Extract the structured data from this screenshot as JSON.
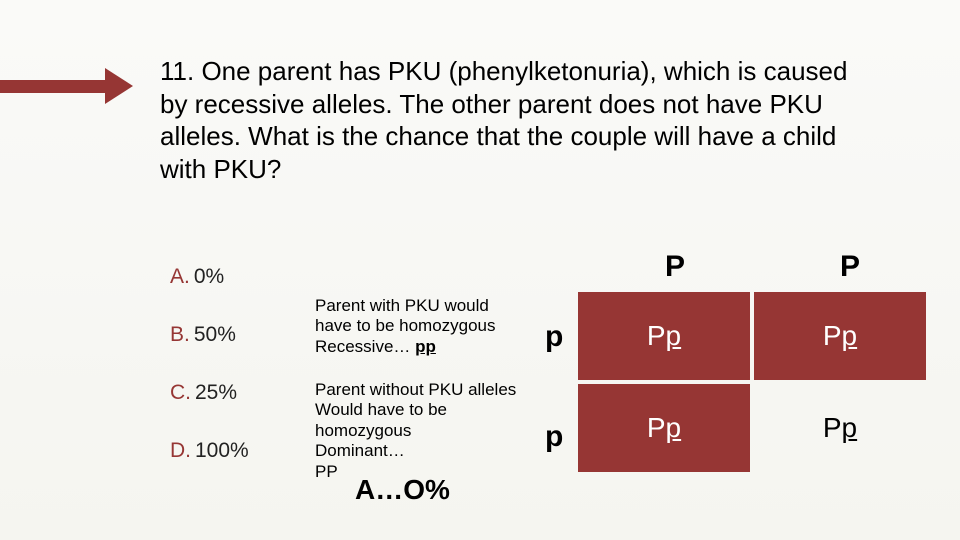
{
  "question": "11. One parent has PKU (phenylketonuria), which is caused by recessive alleles. The other parent does not have PKU alleles. What is the chance that the couple will have a child with PKU?",
  "options": {
    "A": {
      "letter": "A.",
      "text": "0%"
    },
    "B": {
      "letter": "B.",
      "text": "50%"
    },
    "C": {
      "letter": "C.",
      "text": "25%"
    },
    "D": {
      "letter": "D.",
      "text": "100%"
    }
  },
  "explain1": {
    "line1": "Parent with PKU would",
    "line2": "have to be homozygous",
    "line3_pre": "Recessive… ",
    "line3_u": "pp"
  },
  "explain2": {
    "line1": "Parent without PKU alleles",
    "line2": "Would have to be",
    "line3": "homozygous",
    "line4": "Dominant…",
    "line5": "PP"
  },
  "answer": "A…O%",
  "punnett": {
    "col_heads": [
      "P",
      "P"
    ],
    "row_heads": [
      "p",
      "p"
    ],
    "cells": [
      {
        "row": 1,
        "col": 1,
        "big": "P",
        "small": "p",
        "filled": true
      },
      {
        "row": 1,
        "col": 2,
        "big": "P",
        "small": "p",
        "filled": true
      },
      {
        "row": 2,
        "col": 1,
        "big": "P",
        "small": "p",
        "filled": true
      },
      {
        "row": 2,
        "col": 2,
        "big": "P",
        "small": "p",
        "filled": false
      }
    ]
  },
  "colors": {
    "accent": "#963634",
    "bg_top": "#fafaf8",
    "bg_bot": "#f5f5f0"
  }
}
